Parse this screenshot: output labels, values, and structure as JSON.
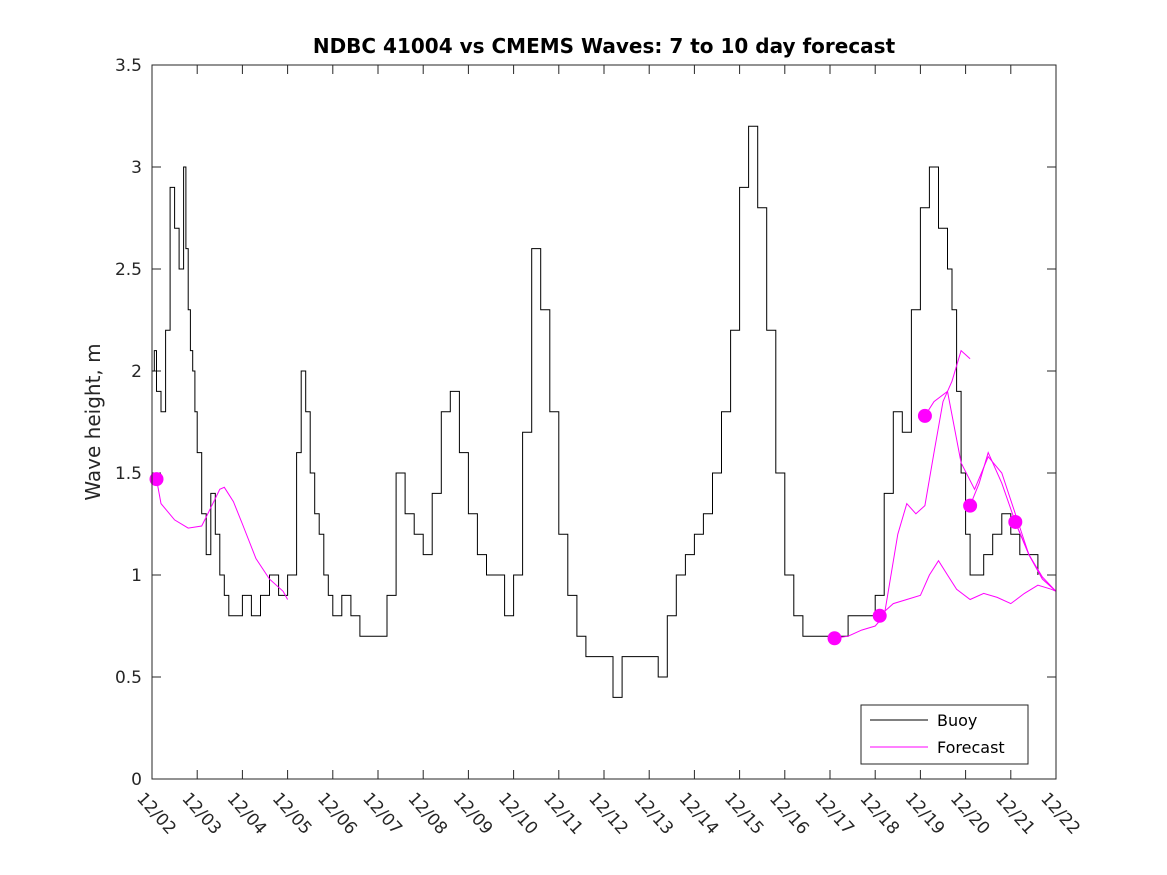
{
  "chart_data": {
    "type": "line",
    "title": "NDBC 41004 vs CMEMS Waves: 7 to 10 day forecast",
    "xlabel": "",
    "ylabel": "Wave height, m",
    "xlim": [
      0,
      20
    ],
    "ylim": [
      0,
      3.5
    ],
    "yticks": [
      0,
      0.5,
      1,
      1.5,
      2,
      2.5,
      3,
      3.5
    ],
    "ytick_labels": [
      "0",
      "0.5",
      "1",
      "1.5",
      "2",
      "2.5",
      "3",
      "3.5"
    ],
    "xtick_labels": [
      "12/02",
      "12/03",
      "12/04",
      "12/05",
      "12/06",
      "12/07",
      "12/08",
      "12/09",
      "12/10",
      "12/11",
      "12/12",
      "12/13",
      "12/14",
      "12/15",
      "12/16",
      "12/17",
      "12/18",
      "12/19",
      "12/20",
      "12/21",
      "12/22"
    ],
    "legend": {
      "position": "bottom-right",
      "entries": [
        "Buoy",
        "Forecast"
      ]
    },
    "colors": {
      "buoy": "#000000",
      "forecast": "#ff00ff"
    },
    "series": [
      {
        "name": "Buoy",
        "x": [
          0,
          0.05,
          0.1,
          0.2,
          0.3,
          0.4,
          0.5,
          0.6,
          0.7,
          0.75,
          0.8,
          0.85,
          0.9,
          0.95,
          1.0,
          1.1,
          1.2,
          1.3,
          1.4,
          1.5,
          1.6,
          1.7,
          1.8,
          1.9,
          2.0,
          2.2,
          2.4,
          2.6,
          2.8,
          3.0,
          3.2,
          3.3,
          3.4,
          3.5,
          3.6,
          3.7,
          3.8,
          3.9,
          4.0,
          4.2,
          4.4,
          4.6,
          4.8,
          5.0,
          5.2,
          5.4,
          5.6,
          5.8,
          6.0,
          6.2,
          6.4,
          6.6,
          6.8,
          7.0,
          7.2,
          7.4,
          7.6,
          7.8,
          8.0,
          8.2,
          8.4,
          8.6,
          8.8,
          9.0,
          9.2,
          9.4,
          9.6,
          9.8,
          10.0,
          10.2,
          10.4,
          10.6,
          10.8,
          11.0,
          11.2,
          11.4,
          11.6,
          11.8,
          12.0,
          12.2,
          12.4,
          12.6,
          12.8,
          13.0,
          13.2,
          13.4,
          13.6,
          13.8,
          14.0,
          14.2,
          14.4,
          14.6,
          14.8,
          15.0,
          15.2,
          15.4,
          15.6,
          15.8,
          16.0,
          16.2,
          16.4,
          16.6,
          16.8,
          17.0,
          17.2,
          17.4,
          17.6,
          17.7,
          17.8,
          17.9,
          18.0,
          18.1,
          18.2,
          18.4,
          18.6,
          18.8,
          19.0,
          19.2,
          19.4,
          19.6
        ],
        "values": [
          2.0,
          2.1,
          1.9,
          1.8,
          2.2,
          2.9,
          2.7,
          2.5,
          3.0,
          2.6,
          2.3,
          2.1,
          2.0,
          1.8,
          1.6,
          1.3,
          1.1,
          1.4,
          1.2,
          1.0,
          0.9,
          0.8,
          0.8,
          0.8,
          0.9,
          0.8,
          0.9,
          1.0,
          0.9,
          1.0,
          1.6,
          2.0,
          1.8,
          1.5,
          1.3,
          1.2,
          1.0,
          0.9,
          0.8,
          0.9,
          0.8,
          0.7,
          0.7,
          0.7,
          0.9,
          1.5,
          1.3,
          1.2,
          1.1,
          1.4,
          1.8,
          1.9,
          1.6,
          1.3,
          1.1,
          1.0,
          1.0,
          0.8,
          1.0,
          1.7,
          2.6,
          2.3,
          1.8,
          1.2,
          0.9,
          0.7,
          0.6,
          0.6,
          0.6,
          0.4,
          0.6,
          0.6,
          0.6,
          0.6,
          0.5,
          0.8,
          1.0,
          1.1,
          1.2,
          1.3,
          1.5,
          1.8,
          2.2,
          2.9,
          3.2,
          2.8,
          2.2,
          1.5,
          1.0,
          0.8,
          0.7,
          0.7,
          0.7,
          0.7,
          0.7,
          0.8,
          0.8,
          0.8,
          0.9,
          1.4,
          1.8,
          1.7,
          2.3,
          2.8,
          3.0,
          2.7,
          2.5,
          2.3,
          1.9,
          1.5,
          1.2,
          1.0,
          1.0,
          1.1,
          1.2,
          1.3,
          1.2,
          1.1,
          1.1,
          1.0
        ]
      },
      {
        "name": "Forecast",
        "x": [
          0.1,
          0.2,
          0.5,
          0.8,
          1.1,
          1.3,
          1.5,
          1.6,
          1.8,
          2.0,
          2.3,
          2.6,
          2.9,
          3.0
        ],
        "values": [
          1.47,
          1.35,
          1.27,
          1.23,
          1.24,
          1.33,
          1.42,
          1.43,
          1.36,
          1.25,
          1.08,
          0.98,
          0.92,
          0.88
        ]
      },
      {
        "name": "Forecast",
        "x": [
          15.1,
          15.4,
          15.7,
          16.0,
          16.2,
          16.5,
          16.7,
          16.9,
          17.1,
          17.3,
          17.5,
          17.7,
          17.9,
          18.1
        ],
        "values": [
          0.69,
          0.7,
          0.73,
          0.75,
          0.8,
          1.2,
          1.35,
          1.3,
          1.34,
          1.6,
          1.85,
          1.95,
          2.1,
          2.06
        ]
      },
      {
        "name": "Forecast",
        "x": [
          16.1,
          16.4,
          16.7,
          17.0,
          17.2,
          17.4,
          17.6,
          17.8,
          18.1,
          18.4,
          18.7,
          19.0,
          19.3,
          19.6,
          19.9,
          20.0
        ],
        "values": [
          0.8,
          0.86,
          0.88,
          0.9,
          1.0,
          1.07,
          1.0,
          0.93,
          0.88,
          0.91,
          0.89,
          0.86,
          0.91,
          0.95,
          0.93,
          0.92
        ]
      },
      {
        "name": "Forecast",
        "x": [
          17.1,
          17.3,
          17.6,
          17.9,
          18.2,
          18.5,
          18.8,
          19.1,
          19.4,
          19.7,
          20.0
        ],
        "values": [
          1.78,
          1.85,
          1.9,
          1.55,
          1.42,
          1.58,
          1.5,
          1.3,
          1.1,
          0.98,
          0.92
        ]
      },
      {
        "name": "Forecast",
        "x": [
          18.1,
          18.3,
          18.5,
          18.8,
          19.1,
          19.4,
          19.7,
          20.0
        ],
        "values": [
          1.34,
          1.45,
          1.6,
          1.45,
          1.26,
          1.1,
          0.99,
          0.92
        ]
      },
      {
        "name": "Forecast",
        "x": [
          19.1,
          19.4,
          19.7,
          20.0
        ],
        "values": [
          1.26,
          1.1,
          0.98,
          0.92
        ]
      }
    ],
    "forecast_markers": {
      "x": [
        0.1,
        15.1,
        16.1,
        17.1,
        18.1,
        19.1
      ],
      "values": [
        1.47,
        0.69,
        0.8,
        1.78,
        1.34,
        1.26
      ]
    }
  }
}
